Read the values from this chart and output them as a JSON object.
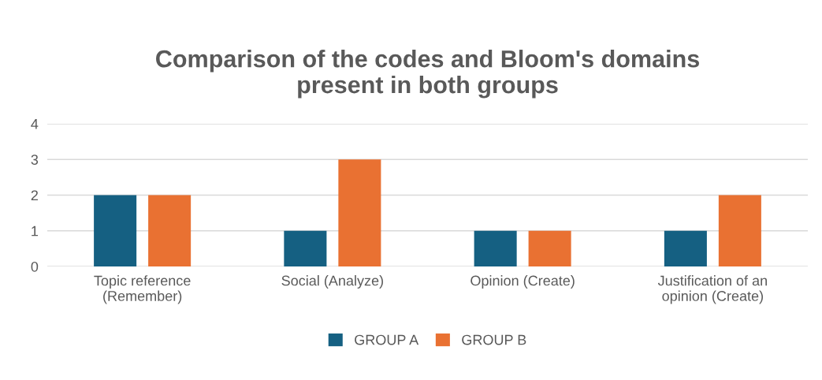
{
  "chart_data": {
    "type": "bar",
    "title": "Comparison of the codes and Bloom's domains\npresent in both groups",
    "categories": [
      "Topic reference\n(Remember)",
      "Social (Analyze)",
      "Opinion (Create)",
      "Justification of an\nopinion (Create)"
    ],
    "series": [
      {
        "name": "GROUP A",
        "color": "#156082",
        "values": [
          2,
          1,
          1,
          1
        ]
      },
      {
        "name": "GROUP B",
        "color": "#e97132",
        "values": [
          2,
          3,
          1,
          2
        ]
      }
    ],
    "ylim": [
      0,
      4
    ],
    "yticks": [
      0,
      1,
      2,
      3,
      4
    ],
    "grid": "y",
    "legend": "bottom"
  }
}
